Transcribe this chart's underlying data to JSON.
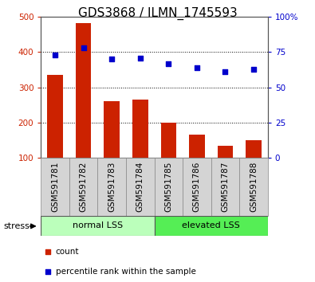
{
  "title": "GDS3868 / ILMN_1745593",
  "categories": [
    "GSM591781",
    "GSM591782",
    "GSM591783",
    "GSM591784",
    "GSM591785",
    "GSM591786",
    "GSM591787",
    "GSM591788"
  ],
  "bar_values": [
    335,
    483,
    260,
    265,
    201,
    167,
    135,
    150
  ],
  "scatter_values": [
    73,
    78,
    70,
    71,
    67,
    64,
    61,
    63
  ],
  "ylim_left": [
    100,
    500
  ],
  "ylim_right": [
    0,
    100
  ],
  "yticks_left": [
    100,
    200,
    300,
    400,
    500
  ],
  "yticks_right": [
    0,
    25,
    50,
    75,
    100
  ],
  "bar_color": "#cc2200",
  "scatter_color": "#0000cc",
  "group1_label": "normal LSS",
  "group2_label": "elevated LSS",
  "group1_color": "#bbffbb",
  "group2_color": "#55ee55",
  "xtick_bg_color": "#d4d4d4",
  "xtick_border_color": "#888888",
  "stress_label": "stress",
  "legend_count": "count",
  "legend_percentile": "percentile rank within the sample",
  "title_fontsize": 11,
  "tick_fontsize": 7.5,
  "group_fontsize": 8
}
